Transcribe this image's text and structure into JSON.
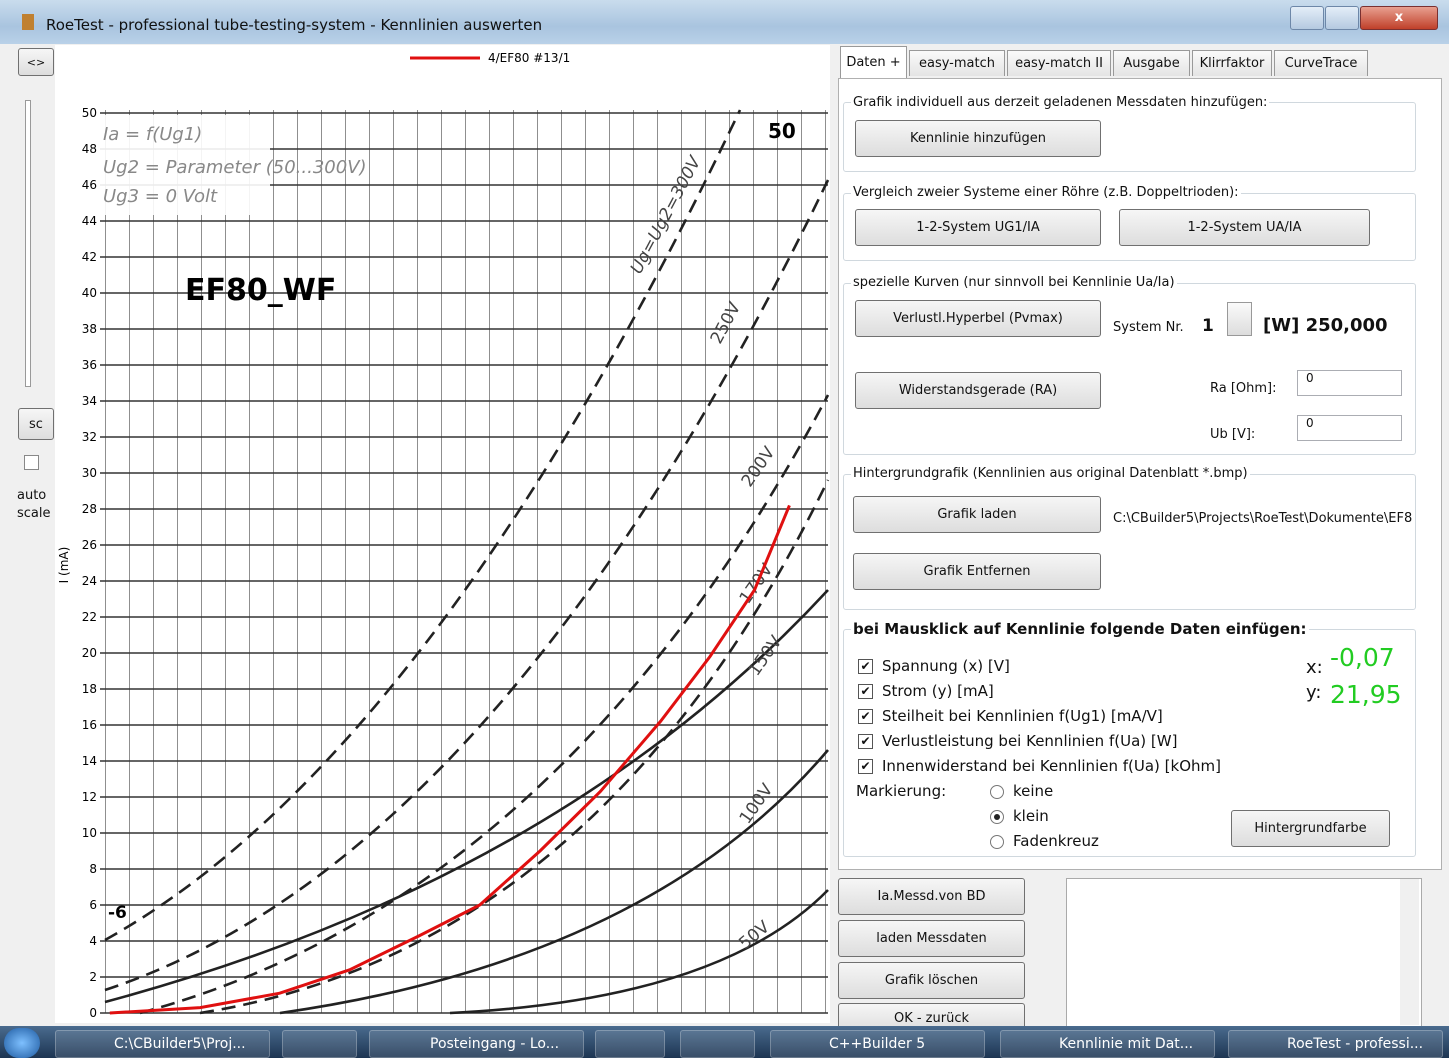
{
  "window": {
    "title": "RoeTest - professional tube-testing-system - Kennlinien auswerten"
  },
  "left_strip": {
    "toggle": "<>",
    "scale_button": "sc",
    "autoscale": "auto scale"
  },
  "chart_data": {
    "type": "line",
    "ylabel": "I (mA)",
    "xlim": [
      -6,
      0
    ],
    "ylim": [
      0,
      50
    ],
    "yticks": [
      0,
      2,
      4,
      6,
      8,
      10,
      12,
      14,
      16,
      18,
      20,
      22,
      24,
      26,
      28,
      30,
      32,
      34,
      36,
      38,
      40,
      42,
      44,
      46,
      48,
      50
    ],
    "grid": true,
    "series": [
      {
        "name": "4/EF80 #13/1",
        "color": "#e01010",
        "x": [
          -5.96,
          -5.21,
          -4.55,
          -3.97,
          -3.39,
          -2.89,
          -2.39,
          -1.89,
          -1.39,
          -0.98,
          -0.61,
          -0.32
        ],
        "values": [
          0,
          0.3,
          1.1,
          2.4,
          4.3,
          6,
          9,
          12.3,
          16.2,
          19.8,
          23.5,
          28.2
        ]
      }
    ],
    "annotations": [
      "Ia = f(Ug1)",
      "Ug2 = Parameter (50...300V)",
      "Ug3 = 0 Volt",
      "EF80_WF",
      "50",
      "Ug=Ug2=300V",
      "250V",
      "200V",
      "170V",
      "150V",
      "100V",
      "50V",
      "-6"
    ]
  },
  "panel": {
    "tabs": [
      "Daten +",
      "easy-match",
      "easy-match II",
      "Ausgabe",
      "Klirrfaktor",
      "CurveTrace"
    ],
    "add_group": {
      "title": "Grafik individuell aus derzeit geladenen Messdaten hinzufügen:",
      "button": "Kennlinie hinzufügen"
    },
    "compare_group": {
      "title": "Vergleich zweier Systeme einer Röhre (z.B. Doppeltrioden):",
      "buttons": [
        "1-2-System UG1/IA",
        "1-2-System UA/IA"
      ]
    },
    "curves_group": {
      "title": "spezielle Kurven (nur sinnvoll bei Kennlinie Ua/Ia)",
      "hyperbola_button": "Verlustl.Hyperbel (Pvmax)",
      "system_label": "System Nr.",
      "system_value": "1",
      "power": "[W] 250,000",
      "load_line_button": "Widerstandsgerade (RA)",
      "ra_label": "Ra [Ohm]:",
      "ra_value": "0",
      "ub_label": "Ub [V]:",
      "ub_value": "0"
    },
    "background_group": {
      "title": "Hintergrundgrafik (Kennlinien aus original Datenblatt *.bmp)",
      "load_button": "Grafik laden",
      "remove_button": "Grafik Entfernen",
      "path": "C:\\CBuilder5\\Projects\\RoeTest\\Dokumente\\EF8"
    },
    "click_group": {
      "title": "bei Mausklick auf Kennlinie folgende Daten einfügen:",
      "options": [
        {
          "label": "Spannung (x) [V]",
          "checked": true
        },
        {
          "label": "Strom (y) [mA]",
          "checked": true
        },
        {
          "label": "Steilheit bei Kennlinien f(Ug1) [mA/V]",
          "checked": true
        },
        {
          "label": "Verlustleistung bei Kennlinien f(Ua) [W]",
          "checked": true
        },
        {
          "label": "Innenwiderstand bei Kennlinien f(Ua) [kOhm]",
          "checked": true
        }
      ],
      "marking_label": "Markierung:",
      "marking_options": [
        "keine",
        "klein",
        "Fadenkreuz"
      ],
      "marking_selected": 1,
      "x_label": "x:",
      "x_value": "-0,07",
      "y_label": "y:",
      "y_value": "21,95",
      "color_button": "Hintergrundfarbe"
    },
    "buttons": [
      "Ia.Messd.von BD",
      "laden Messdaten",
      "Grafik löschen",
      "OK - zurück"
    ]
  },
  "taskbar": [
    "C:\\CBuilder5\\Proj...",
    "Posteingang - Lo...",
    "C++Builder 5",
    "Kennlinie mit Dat...",
    "RoeTest - professi..."
  ]
}
